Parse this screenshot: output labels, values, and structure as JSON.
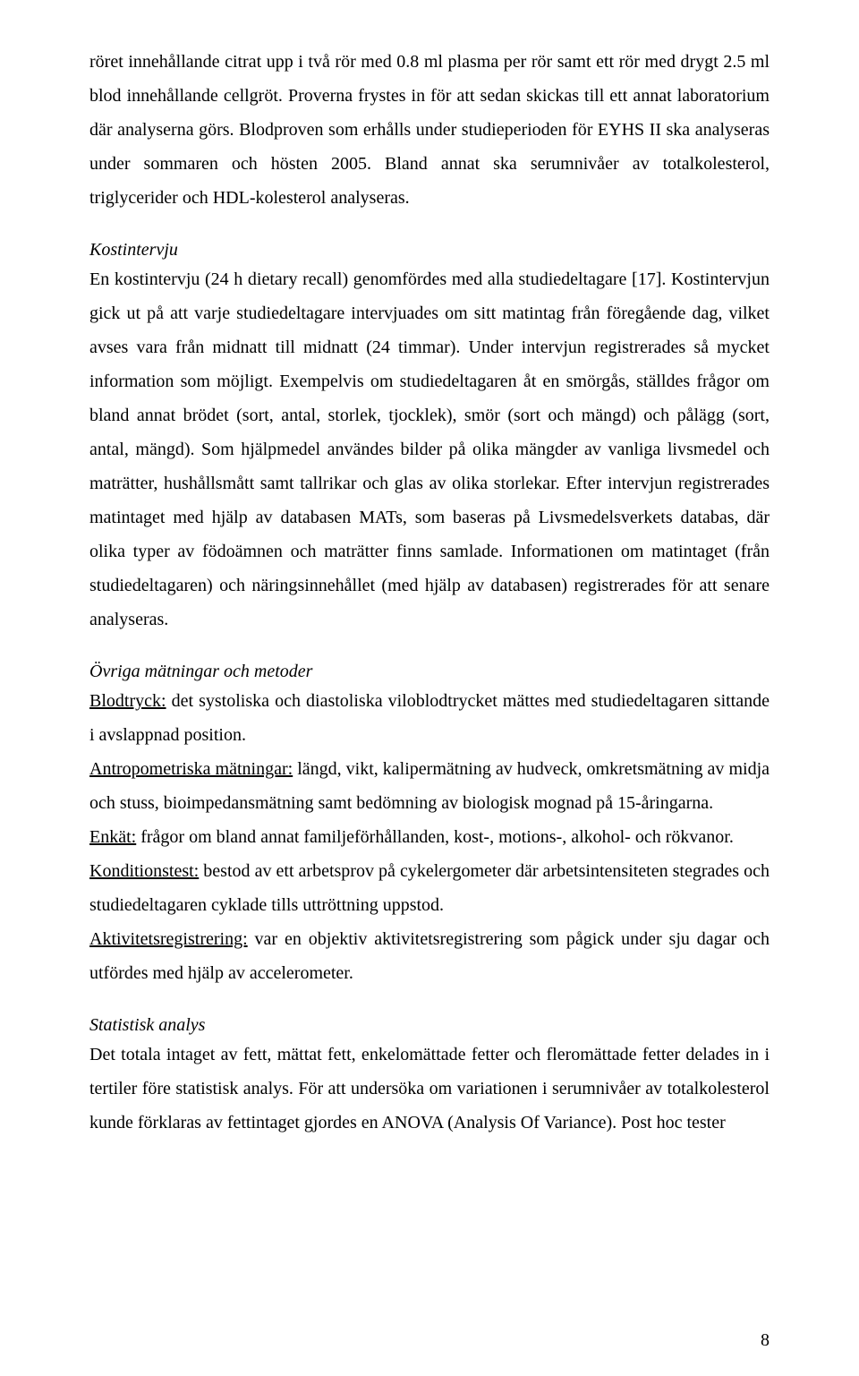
{
  "paragraphs": {
    "p1": "röret innehållande citrat upp i två rör med 0.8 ml plasma per rör samt ett rör med drygt 2.5 ml blod innehållande cellgröt. Proverna frystes in för att sedan skickas till ett annat laboratorium där analyserna görs. Blodproven som erhålls under studieperioden för EYHS II ska analyseras under sommaren och hösten 2005. Bland annat ska serumnivåer av totalkolesterol, triglycerider och HDL-kolesterol analyseras.",
    "p2": "En kostintervju (24 h dietary recall) genomfördes med alla studiedeltagare [17]. Kostintervjun gick ut på att varje studiedeltagare intervjuades om sitt matintag från föregående dag, vilket avses vara från midnatt till midnatt (24 timmar). Under intervjun registrerades så mycket information som möjligt. Exempelvis om studiedeltagaren åt en smörgås, ställdes frågor om bland annat brödet (sort, antal, storlek, tjocklek), smör (sort och mängd) och pålägg (sort, antal, mängd). Som hjälpmedel användes bilder på olika mängder av vanliga livsmedel och maträtter, hushållsmått samt tallrikar och glas av olika storlekar. Efter intervjun registrerades matintaget med hjälp av databasen MATs, som baseras på Livsmedelsverkets databas, där olika typer av födoämnen och maträtter finns samlade. Informationen om matintaget (från studiedeltagaren) och näringsinnehållet (med hjälp av databasen) registrerades för att senare analyseras.",
    "p3": "Det totala intaget av fett, mättat fett, enkelomättade fetter och fleromättade fetter delades in i tertiler före statistisk analys. För att undersöka om variationen i serumnivåer av totalkolesterol kunde förklaras av fettintaget gjordes en ANOVA (Analysis Of Variance). Post hoc tester"
  },
  "headings": {
    "h1": "Kostintervju",
    "h2": "Övriga mätningar och metoder",
    "h3": "Statistisk analys"
  },
  "measurements": {
    "m1_label": "Blodtryck:",
    "m1_text": " det systoliska och diastoliska viloblodtrycket mättes med studiedeltagaren sittande i avslappnad position.",
    "m2_label": "Antropometriska mätningar:",
    "m2_text": " längd, vikt, kalipermätning av hudveck, omkretsmätning av midja och stuss, bioimpedansmätning samt bedömning av biologisk mognad på 15-åringarna.",
    "m3_label": "Enkät:",
    "m3_text": " frågor om bland annat familjeförhållanden, kost-, motions-, alkohol- och rökvanor.",
    "m4_label": "Konditionstest:",
    "m4_text": " bestod av ett arbetsprov på cykelergometer där arbetsintensiteten stegrades och studiedeltagaren cyklade tills uttröttning uppstod.",
    "m5_label": "Aktivitetsregistrering:",
    "m5_text": " var en objektiv aktivitetsregistrering som pågick under sju dagar och utfördes med hjälp av accelerometer."
  },
  "page_number": "8"
}
